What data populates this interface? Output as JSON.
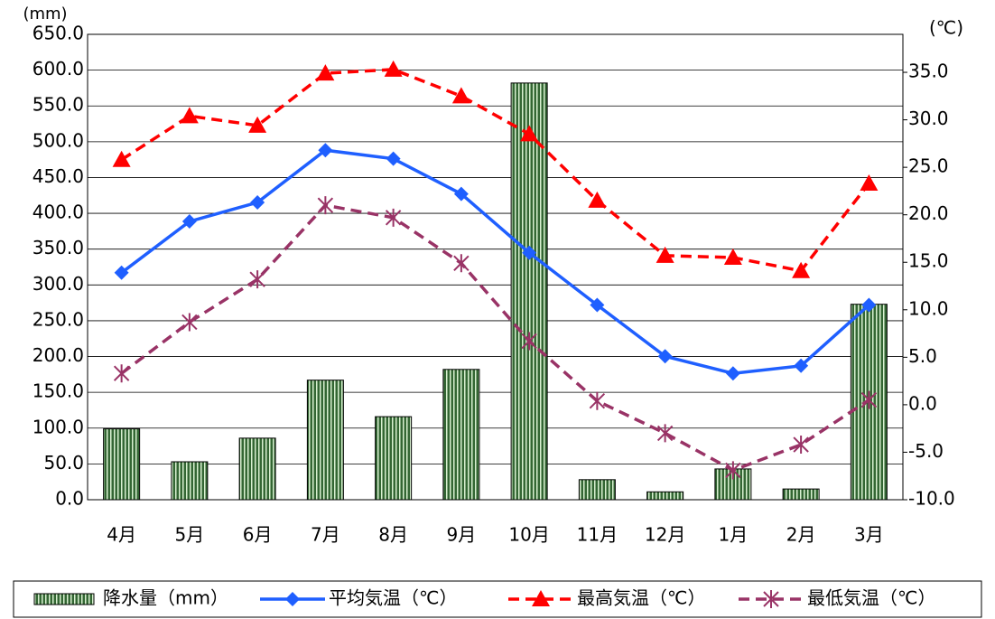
{
  "chart_data": {
    "type": "combo",
    "y_label": "(mm)",
    "y2_label": "(℃)",
    "categories": [
      "4月",
      "5月",
      "6月",
      "7月",
      "8月",
      "9月",
      "10月",
      "11月",
      "12月",
      "1月",
      "2月",
      "3月"
    ],
    "series": [
      {
        "name": "降水量（mm）",
        "type": "bar",
        "color": "#336633",
        "values": [
          99,
          53,
          86,
          167,
          116,
          182,
          582,
          28,
          11,
          43,
          15,
          273
        ]
      },
      {
        "name": "平均気温（℃）",
        "type": "line",
        "axis": "y2",
        "color": "#1f5fff",
        "marker": "diamond",
        "dashed": false,
        "values": [
          13.9,
          19.3,
          21.3,
          26.8,
          25.9,
          22.2,
          16.0,
          10.5,
          5.1,
          3.3,
          4.1,
          10.5
        ]
      },
      {
        "name": "最高気温（℃）",
        "type": "line",
        "axis": "y2",
        "color": "#ff0000",
        "marker": "triangle",
        "dashed": true,
        "values": [
          25.8,
          30.4,
          29.4,
          34.9,
          35.3,
          32.5,
          28.5,
          21.5,
          15.7,
          15.5,
          14.1,
          23.3
        ]
      },
      {
        "name": "最低気温（℃）",
        "type": "line",
        "axis": "y2",
        "color": "#993366",
        "marker": "star",
        "dashed": true,
        "values": [
          3.3,
          8.7,
          13.2,
          21.0,
          19.7,
          14.9,
          6.7,
          0.4,
          -3.0,
          -6.9,
          -4.2,
          0.5
        ]
      }
    ],
    "ylim": [
      0,
      650
    ],
    "yticks": [
      {
        "value": 0,
        "label": "0.0"
      },
      {
        "value": 50,
        "label": "50.0"
      },
      {
        "value": 100,
        "label": "100.0"
      },
      {
        "value": 150,
        "label": "150.0"
      },
      {
        "value": 200,
        "label": "200.0"
      },
      {
        "value": 250,
        "label": "250.0"
      },
      {
        "value": 300,
        "label": "300.0"
      },
      {
        "value": 350,
        "label": "350.0"
      },
      {
        "value": 400,
        "label": "400.0"
      },
      {
        "value": 450,
        "label": "450.0"
      },
      {
        "value": 500,
        "label": "500.0"
      },
      {
        "value": 550,
        "label": "550.0"
      },
      {
        "value": 600,
        "label": "600.0"
      },
      {
        "value": 650,
        "label": "650.0"
      }
    ],
    "y2lim": [
      -10,
      39
    ],
    "y2ticks": [
      {
        "value": -10,
        "label": "-10.0"
      },
      {
        "value": -5,
        "label": "-5.0"
      },
      {
        "value": 0,
        "label": "0.0"
      },
      {
        "value": 5,
        "label": "5.0"
      },
      {
        "value": 10,
        "label": "10.0"
      },
      {
        "value": 15,
        "label": "15.0"
      },
      {
        "value": 20,
        "label": "20.0"
      },
      {
        "value": 25,
        "label": "25.0"
      },
      {
        "value": 30,
        "label": "30.0"
      },
      {
        "value": 35,
        "label": "35.0"
      }
    ],
    "grid": true
  }
}
